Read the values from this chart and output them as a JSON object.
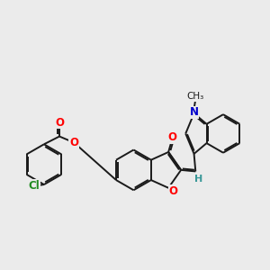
{
  "background_color": "#ebebeb",
  "bond_color": "#1a1a1a",
  "bond_width": 1.4,
  "atom_colors": {
    "O": "#ff0000",
    "N": "#0000cc",
    "Cl": "#228b22",
    "H": "#3a9898"
  },
  "font_size": 8.5,
  "font_size_small": 7.0,
  "figsize": [
    3.0,
    3.0
  ],
  "dpi": 100
}
